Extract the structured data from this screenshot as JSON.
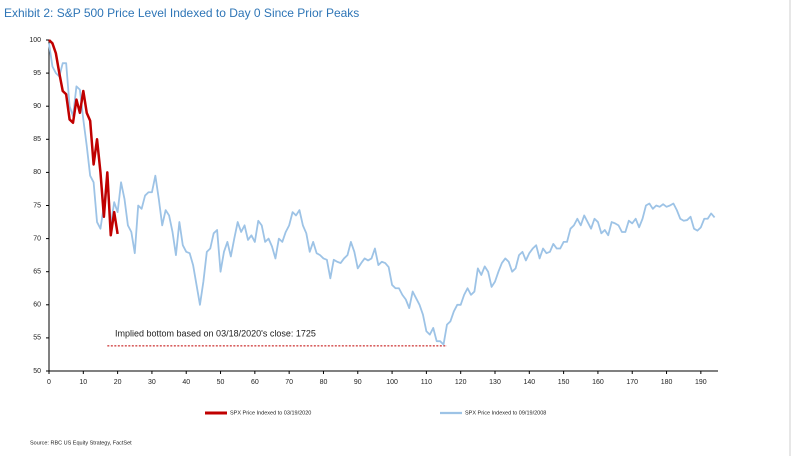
{
  "chart_data": {
    "type": "line",
    "title": "Exhibit 2: S&P 500 Price Level Indexed to Day 0 Since Prior Peaks",
    "annotation": "Implied bottom based on 03/18/2020's close: 1725",
    "reference_line": {
      "value": 53.8,
      "x": [
        17,
        116
      ],
      "color": "#c00000"
    },
    "source": "Source: RBC US Equity Strategy, FactSet",
    "xlim": [
      0,
      195
    ],
    "ylim": [
      50,
      100
    ],
    "xticks": [
      0,
      10,
      20,
      30,
      40,
      50,
      60,
      70,
      80,
      90,
      100,
      110,
      120,
      130,
      140,
      150,
      160,
      170,
      180,
      190
    ],
    "yticks": [
      50,
      55,
      60,
      65,
      70,
      75,
      80,
      85,
      90,
      95,
      100
    ],
    "grid": false,
    "series": [
      {
        "name": "SPX Price Indexed to 03/19/2020",
        "color": "#c00000",
        "width": 2.5,
        "x": [
          0,
          1,
          2,
          3,
          4,
          5,
          6,
          7,
          8,
          9,
          10,
          11,
          12,
          13,
          14,
          15,
          16,
          17,
          18,
          19,
          20
        ],
        "values": [
          100,
          99.5,
          98,
          95,
          92.3,
          91.8,
          88,
          87.5,
          91,
          89,
          92.3,
          89,
          87.8,
          81.2,
          85,
          80,
          73.3,
          80,
          70.5,
          74,
          70.7
        ]
      },
      {
        "name": "SPX Price Indexed to 09/19/2008",
        "color": "#9dc3e6",
        "width": 1.8,
        "x": [
          0,
          1,
          2,
          3,
          4,
          5,
          6,
          7,
          8,
          9,
          10,
          11,
          12,
          13,
          14,
          15,
          16,
          17,
          18,
          19,
          20,
          21,
          22,
          23,
          24,
          25,
          26,
          27,
          28,
          29,
          30,
          31,
          32,
          33,
          34,
          35,
          36,
          37,
          38,
          39,
          40,
          41,
          42,
          43,
          44,
          45,
          46,
          47,
          48,
          49,
          50,
          51,
          52,
          53,
          54,
          55,
          56,
          57,
          58,
          59,
          60,
          61,
          62,
          63,
          64,
          65,
          66,
          67,
          68,
          69,
          70,
          71,
          72,
          73,
          74,
          75,
          76,
          77,
          78,
          79,
          80,
          81,
          82,
          83,
          84,
          85,
          86,
          87,
          88,
          89,
          90,
          91,
          92,
          93,
          94,
          95,
          96,
          97,
          98,
          99,
          100,
          101,
          102,
          103,
          104,
          105,
          106,
          107,
          108,
          109,
          110,
          111,
          112,
          113,
          114,
          115,
          116,
          117,
          118,
          119,
          120,
          121,
          122,
          123,
          124,
          125,
          126,
          127,
          128,
          129,
          130,
          131,
          132,
          133,
          134,
          135,
          136,
          137,
          138,
          139,
          140,
          141,
          142,
          143,
          144,
          145,
          146,
          147,
          148,
          149,
          150,
          151,
          152,
          153,
          154,
          155,
          156,
          157,
          158,
          159,
          160,
          161,
          162,
          163,
          164,
          165,
          166,
          167,
          168,
          169,
          170,
          171,
          172,
          173,
          174,
          175,
          176,
          177,
          178,
          179,
          180,
          181,
          182,
          183,
          184,
          185,
          186,
          187,
          188,
          189,
          190,
          191,
          192,
          193,
          194
        ],
        "values": [
          99.5,
          96,
          95,
          94.5,
          96.5,
          96.5,
          90,
          88.5,
          93,
          92.5,
          88,
          84,
          79.5,
          78.5,
          72.5,
          71.5,
          75,
          79.5,
          72,
          75.5,
          74,
          78.5,
          76,
          72,
          71,
          67.8,
          75,
          74.5,
          76.5,
          77,
          77,
          79.5,
          76,
          72,
          74.3,
          73.5,
          71,
          67.5,
          72.5,
          69,
          68,
          67.8,
          66,
          63,
          60,
          63.5,
          68,
          68.5,
          70.8,
          71.3,
          65,
          68,
          69.5,
          67.3,
          70,
          72.5,
          71,
          72,
          69.8,
          70.5,
          69.5,
          72.7,
          72,
          69.5,
          70,
          68.8,
          67,
          70,
          69.5,
          71,
          72,
          74,
          73.5,
          74.3,
          72,
          70.8,
          68,
          69.5,
          67.8,
          67.5,
          67,
          66.8,
          64,
          66.8,
          66.5,
          66.3,
          67,
          67.5,
          69.5,
          68,
          65.5,
          66.3,
          67,
          66.7,
          67,
          68.5,
          66,
          66.5,
          66.3,
          65.7,
          63,
          62.5,
          62.5,
          61.5,
          60.8,
          59.5,
          62,
          61,
          60,
          58.5,
          56,
          55.5,
          56.5,
          54.5,
          54.5,
          54,
          57,
          57.5,
          59,
          60,
          60,
          61.5,
          62.5,
          61.5,
          62,
          65.5,
          64.5,
          65.8,
          65,
          62.7,
          63.5,
          65,
          66.3,
          67,
          66.5,
          65,
          65.5,
          67.5,
          68,
          66.7,
          67.8,
          68.5,
          69,
          67,
          68.5,
          67.8,
          68,
          69.2,
          68.5,
          68.5,
          69.5,
          69.5,
          71.5,
          72,
          73,
          72,
          73.5,
          72.5,
          71.5,
          73,
          72.5,
          70.8,
          71.3,
          70.5,
          72.5,
          72.3,
          72,
          71,
          71,
          72.7,
          72.3,
          73,
          71.7,
          73,
          75,
          75.3,
          74.5,
          75,
          74.8,
          75.2,
          74.8,
          75,
          75.3,
          74.3,
          73,
          72.7,
          72.8,
          73.3,
          71.5,
          71.2,
          71.7,
          73,
          73,
          73.8,
          73.2
        ]
      }
    ]
  }
}
